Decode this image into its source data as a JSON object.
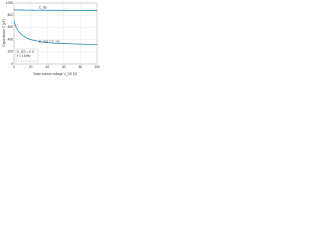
{
  "chart_data": {
    "type": "line",
    "x_label": "Drain-source voltage V_DS [V]",
    "y_label": "Capacitance C [pF]",
    "x": [
      0,
      2,
      5,
      10,
      15,
      20,
      30,
      40,
      50,
      60,
      70,
      80,
      90,
      100
    ],
    "series": [
      {
        "name": "C_iss",
        "color": "#2b8cb3",
        "values": [
          890,
          888,
          886,
          884,
          883,
          882,
          881,
          880,
          880,
          880,
          879,
          879,
          878,
          878
        ]
      },
      {
        "name": "C_oss = C_rss",
        "color": "#2b8cb3",
        "values": [
          700,
          620,
          540,
          470,
          430,
          400,
          370,
          350,
          340,
          335,
          330,
          325,
          322,
          320
        ]
      }
    ],
    "annotations": [
      "V_GS = 0 V",
      "f = 1 MHz"
    ],
    "xlim": [
      0,
      100
    ],
    "xticks": [
      0,
      20,
      40,
      60,
      80,
      100
    ],
    "ylim": [
      0,
      1000
    ],
    "yticks": [
      0,
      200,
      400,
      600,
      800,
      1000
    ],
    "grid": true
  }
}
